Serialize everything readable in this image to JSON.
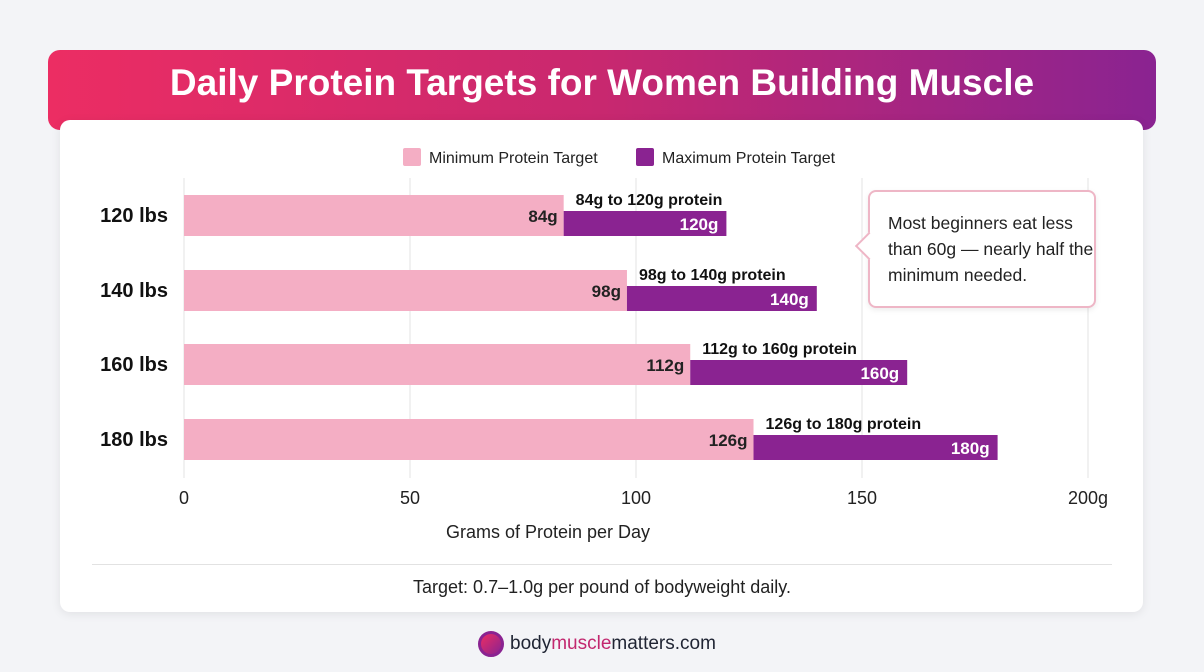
{
  "title": "Daily Protein Targets for Women Building Muscle",
  "note": "Target: 0.7–1.0g per pound of bodyweight daily.",
  "callout": "Most beginners eat less than 60g — nearly half the minimum needed.",
  "brand": {
    "part1": "body",
    "part2": "muscle",
    "part3": "matters.com"
  },
  "chart_data": {
    "type": "bar",
    "orientation": "horizontal",
    "categories": [
      "120 lbs",
      "140 lbs",
      "160 lbs",
      "180 lbs"
    ],
    "series": [
      {
        "name": "Minimum Protein Target",
        "values": [
          84,
          98,
          112,
          126
        ],
        "color": "#f4aec4"
      },
      {
        "name": "Maximum Protein Target",
        "values": [
          120,
          140,
          160,
          180
        ],
        "color": "#8a2391"
      }
    ],
    "min_labels": [
      "84g",
      "98g",
      "112g",
      "126g"
    ],
    "max_labels": [
      "120g",
      "140g",
      "160g",
      "180g"
    ],
    "range_labels": [
      "84g to 120g protein",
      "98g to 140g protein",
      "112g to 160g protein",
      "126g to 180g protein"
    ],
    "xlabel": "Grams of Protein per Day",
    "xlim": [
      0,
      200
    ],
    "xticks": [
      0,
      50,
      100,
      150,
      200
    ],
    "xtick_labels": [
      "0",
      "50",
      "100",
      "150",
      "200g"
    ],
    "grid": true,
    "legend": "top-center"
  }
}
